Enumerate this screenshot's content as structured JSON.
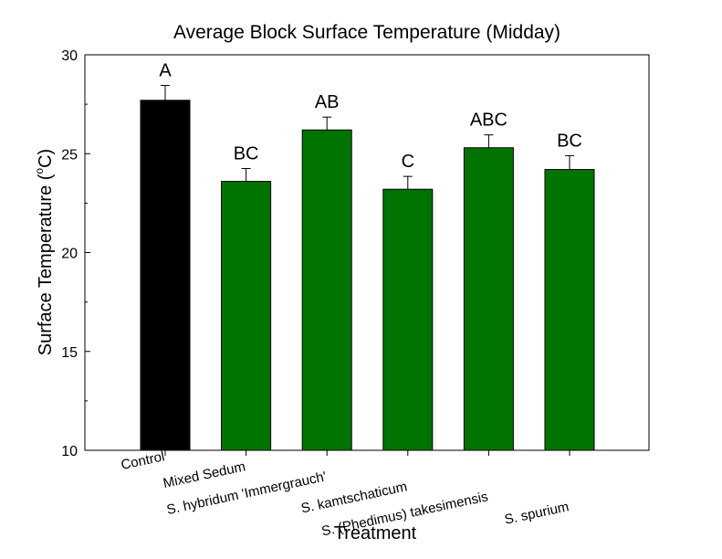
{
  "chart_data": {
    "type": "bar",
    "title": "Average Block Surface Temperature (Midday)",
    "xlabel": "Treatment",
    "ylabel_main": "Surface Temperature (",
    "ylabel_sup": "o",
    "ylabel_tail": "C)",
    "ylim": [
      10,
      30
    ],
    "yticks": [
      "10",
      "15",
      "20",
      "25",
      "30"
    ],
    "grid": false,
    "legend": "none",
    "categories": [
      "Control",
      "Mixed Sedum",
      "S. hybridum 'Immergrauch'",
      "S. kamtschaticum",
      "S. (Phedimus) takesimensis",
      "S. spurium"
    ],
    "values": [
      27.7,
      23.6,
      26.2,
      23.2,
      25.3,
      24.2
    ],
    "errors": [
      0.75,
      0.65,
      0.65,
      0.65,
      0.65,
      0.7
    ],
    "letters": [
      "A",
      "BC",
      "AB",
      "C",
      "ABC",
      "BC"
    ],
    "colors": [
      "#000000",
      "#007300",
      "#007300",
      "#007300",
      "#007300",
      "#007300"
    ]
  }
}
